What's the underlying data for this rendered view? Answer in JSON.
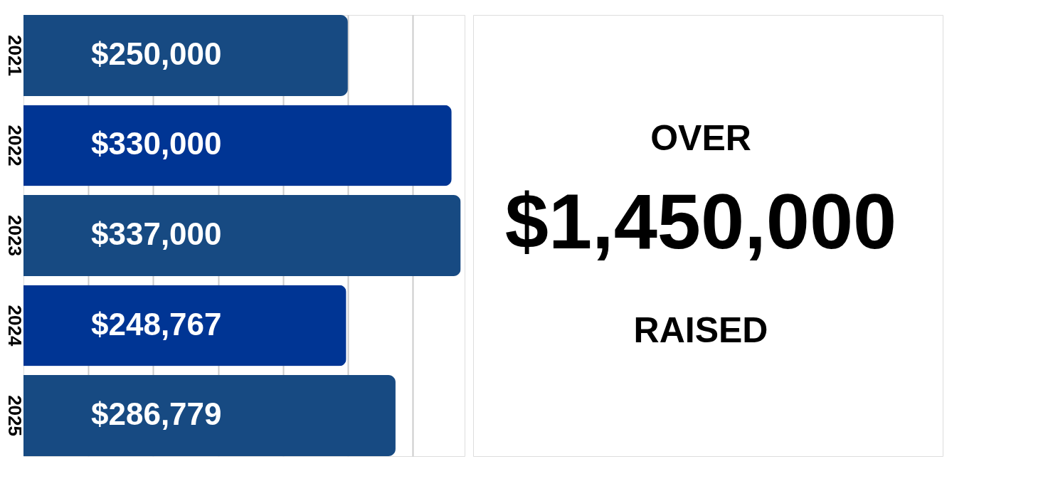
{
  "chart_data": {
    "type": "bar",
    "orientation": "horizontal",
    "categories": [
      "2021",
      "2022",
      "2023",
      "2024",
      "2025"
    ],
    "values": [
      250000,
      330000,
      337000,
      248767,
      286779
    ],
    "colors": [
      "#174a82",
      "#003594",
      "#174a82",
      "#003594",
      "#174a82"
    ],
    "value_labels": [
      "$250,000",
      "$330,000",
      "$337,000",
      "$248,767",
      "$286,779"
    ],
    "xlim": [
      0,
      340000
    ],
    "xticks": [
      50000,
      100000,
      150000,
      200000,
      250000,
      300000
    ],
    "grid": "x",
    "tick_labels": "y",
    "annotations": [
      "OVER",
      "$1,450,000",
      "RAISED"
    ]
  }
}
